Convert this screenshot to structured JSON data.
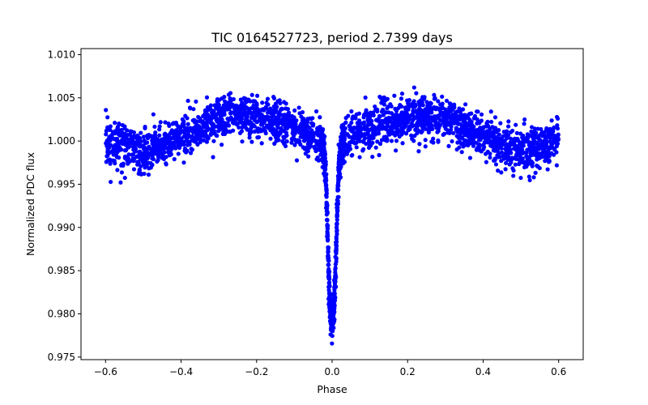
{
  "chart_data": {
    "type": "scatter",
    "title": "TIC 0164527723, period 2.7399 days",
    "xlabel": "Phase",
    "ylabel": "Normalized PDC flux",
    "xlim": [
      -0.665,
      0.665
    ],
    "ylim": [
      0.9747,
      1.0107
    ],
    "x_ticks": [
      -0.6,
      -0.4,
      -0.2,
      0.0,
      0.2,
      0.4,
      0.6
    ],
    "x_tick_labels": [
      "−0.6",
      "−0.4",
      "−0.2",
      "0.0",
      "0.2",
      "0.4",
      "0.6"
    ],
    "y_ticks": [
      0.975,
      0.98,
      0.985,
      0.99,
      0.995,
      1.0,
      1.005,
      1.01
    ],
    "y_tick_labels": [
      "0.975",
      "0.980",
      "0.985",
      "0.990",
      "0.995",
      "1.000",
      "1.005",
      "1.010"
    ],
    "grid": false,
    "marker_color": "#0000ff",
    "series": [
      {
        "x_range": [
          -0.6,
          0.6
        ],
        "baseline": [
          [
            -0.6,
            1.0
          ],
          [
            -0.55,
            0.9995
          ],
          [
            -0.5,
            0.9985
          ],
          [
            -0.45,
            0.9995
          ],
          [
            -0.4,
            1.0005
          ],
          [
            -0.35,
            1.0015
          ],
          [
            -0.3,
            1.0025
          ],
          [
            -0.25,
            1.0028
          ],
          [
            -0.2,
            1.0028
          ],
          [
            -0.15,
            1.0022
          ],
          [
            -0.1,
            1.0015
          ],
          [
            -0.05,
            1.0005
          ],
          [
            -0.03,
            1.0
          ],
          [
            -0.02,
            0.9985
          ],
          [
            -0.015,
            0.994
          ],
          [
            -0.01,
            0.986
          ],
          [
            -0.005,
            0.98
          ],
          [
            0.0,
            0.9795
          ],
          [
            0.005,
            0.98
          ],
          [
            0.01,
            0.986
          ],
          [
            0.015,
            0.994
          ],
          [
            0.02,
            0.9985
          ],
          [
            0.03,
            1.0
          ],
          [
            0.05,
            1.0005
          ],
          [
            0.1,
            1.0015
          ],
          [
            0.15,
            1.0022
          ],
          [
            0.2,
            1.0028
          ],
          [
            0.25,
            1.0028
          ],
          [
            0.3,
            1.0025
          ],
          [
            0.35,
            1.0015
          ],
          [
            0.4,
            1.0005
          ],
          [
            0.45,
            0.9995
          ],
          [
            0.5,
            0.9985
          ],
          [
            0.55,
            0.9995
          ],
          [
            0.6,
            1.0
          ]
        ],
        "scatter_sigma": 0.0012
      }
    ]
  }
}
